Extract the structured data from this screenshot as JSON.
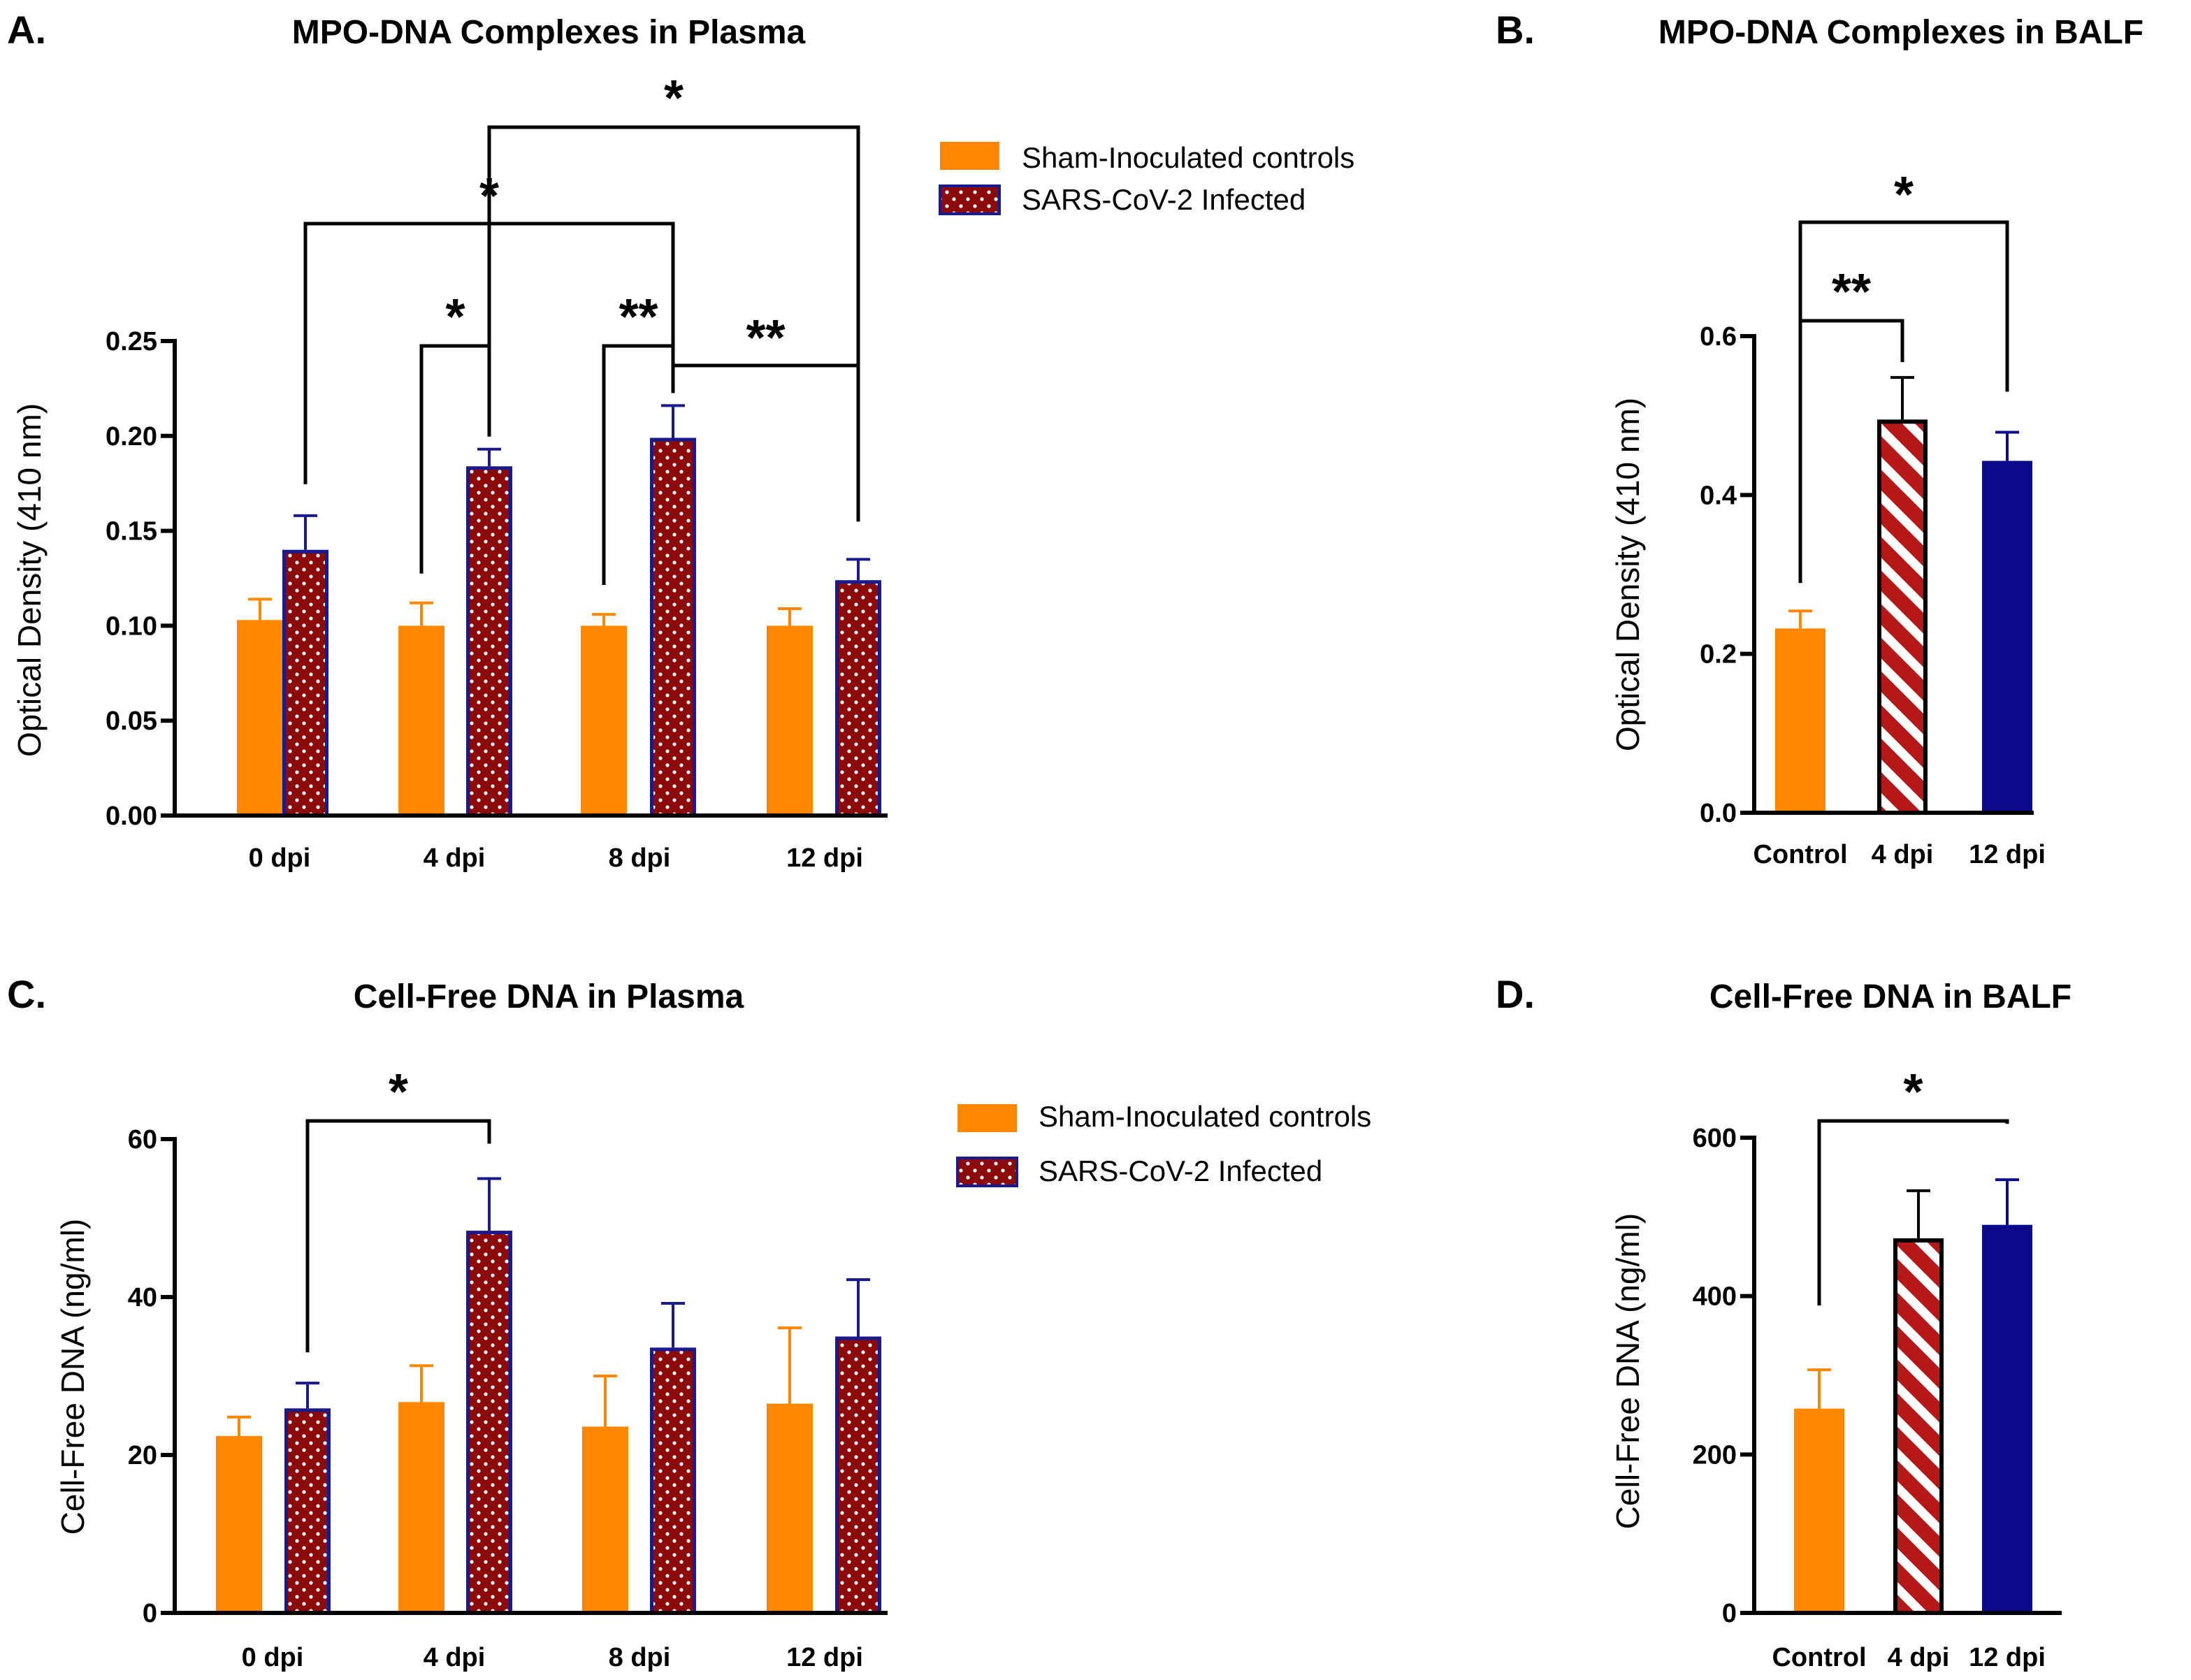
{
  "colors": {
    "sham": "#ff8800",
    "infected_fill": "#8b0a0a",
    "infected_border": "#1a1a8c",
    "dots": "#ffffff",
    "hatch_fill": "#b51818",
    "hatch_stripe": "#ffffff",
    "day12": "#0a0a8a",
    "bracket": "#000000"
  },
  "chart_data": [
    {
      "panel": "A.",
      "type": "bar",
      "title": "MPO-DNA Complexes in Plasma",
      "ylabel": "Optical Density (410 nm)",
      "xlabel": "",
      "ylim": [
        0,
        0.25
      ],
      "yticks": [
        "0.00",
        "0.05",
        "0.10",
        "0.15",
        "0.20",
        "0.25"
      ],
      "categories": [
        "0 dpi",
        "4 dpi",
        "8 dpi",
        "12 dpi"
      ],
      "series": [
        {
          "name": "Sham-Inoculated controls",
          "style": "sham",
          "values": [
            0.103,
            0.1,
            0.1,
            0.1
          ],
          "errors": [
            0.011,
            0.012,
            0.006,
            0.009
          ]
        },
        {
          "name": "SARS-CoV-2 Infected",
          "style": "dots",
          "values": [
            0.14,
            0.184,
            0.199,
            0.124
          ],
          "errors": [
            0.018,
            0.009,
            0.017,
            0.011
          ]
        }
      ],
      "legend": {
        "position": "top-right",
        "entries": [
          "Sham-Inoculated controls",
          "SARS-CoV-2 Infected"
        ]
      },
      "annotations": [
        {
          "label": "*",
          "from": "4 dpi Sham-Inoculated controls",
          "to": "4 dpi SARS-CoV-2 Infected"
        },
        {
          "label": "**",
          "from": "8 dpi Sham-Inoculated controls",
          "to": "8 dpi SARS-CoV-2 Infected"
        },
        {
          "label": "**",
          "from": "8 dpi SARS-CoV-2 Infected",
          "to": "12 dpi SARS-CoV-2 Infected"
        },
        {
          "label": "*",
          "from": "0 dpi SARS-CoV-2 Infected",
          "to": "8 dpi SARS-CoV-2 Infected"
        },
        {
          "label": "*",
          "from": "4 dpi SARS-CoV-2 Infected",
          "to": "12 dpi SARS-CoV-2 Infected"
        }
      ]
    },
    {
      "panel": "B.",
      "type": "bar",
      "title": "MPO-DNA Complexes in BALF",
      "ylabel": "Optical Density (410 nm)",
      "xlabel": "",
      "ylim": [
        0,
        0.6
      ],
      "yticks": [
        "0.0",
        "0.2",
        "0.4",
        "0.6"
      ],
      "categories": [
        "Control",
        "4 dpi",
        "12 dpi"
      ],
      "series": [
        {
          "name": "BALF",
          "styles": [
            "sham",
            "hatch",
            "solid12"
          ],
          "values": [
            0.232,
            0.495,
            0.443
          ],
          "errors": [
            0.022,
            0.053,
            0.036
          ]
        }
      ],
      "annotations": [
        {
          "label": "**",
          "from": "Control",
          "to": "4 dpi"
        },
        {
          "label": "*",
          "from": "Control",
          "to": "12 dpi"
        }
      ]
    },
    {
      "panel": "C.",
      "type": "bar",
      "title": "Cell-Free DNA in Plasma",
      "ylabel": "Cell-Free DNA (ng/ml)",
      "xlabel": "",
      "ylim": [
        0,
        60
      ],
      "yticks": [
        "0",
        "20",
        "40",
        "60"
      ],
      "categories": [
        "0 dpi",
        "4 dpi",
        "8 dpi",
        "12 dpi"
      ],
      "series": [
        {
          "name": "Sham-Inoculated controls",
          "style": "sham",
          "values": [
            22.4,
            26.7,
            23.6,
            26.5
          ],
          "errors": [
            2.4,
            4.6,
            6.4,
            9.6
          ]
        },
        {
          "name": "SARS-CoV-2 Infected",
          "style": "dots",
          "values": [
            25.9,
            48.4,
            33.6,
            35.0
          ],
          "errors": [
            3.2,
            6.6,
            5.6,
            7.2
          ]
        }
      ],
      "legend": {
        "position": "top-right",
        "entries": [
          "Sham-Inoculated controls",
          "SARS-CoV-2 Infected"
        ]
      },
      "annotations": [
        {
          "label": "*",
          "from": "0 dpi SARS-CoV-2 Infected",
          "to": "4 dpi SARS-CoV-2 Infected"
        }
      ]
    },
    {
      "panel": "D.",
      "type": "bar",
      "title": "Cell-Free DNA in BALF",
      "ylabel": "Cell-Free DNA (ng/ml)",
      "xlabel": "",
      "ylim": [
        0,
        600
      ],
      "yticks": [
        "0",
        "200",
        "400",
        "600"
      ],
      "categories": [
        "Control",
        "4 dpi",
        "12 dpi"
      ],
      "series": [
        {
          "name": "BALF",
          "styles": [
            "sham",
            "hatch",
            "solid12"
          ],
          "values": [
            258,
            473,
            490
          ],
          "errors": [
            49,
            60,
            57
          ]
        }
      ],
      "annotations": [
        {
          "label": "*",
          "from": "Control",
          "to": "12 dpi"
        }
      ]
    }
  ]
}
